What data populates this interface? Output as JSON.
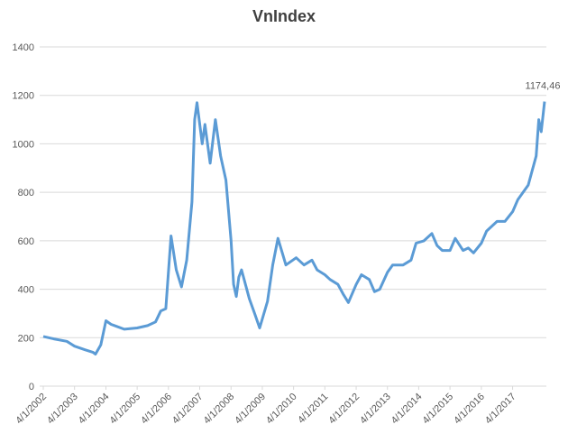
{
  "chart_data": {
    "type": "line",
    "title": "VnIndex",
    "x": [
      "4/1/2002",
      "8/1/2002",
      "1/1/2003",
      "4/1/2003",
      "8/1/2003",
      "11/1/2003",
      "12/1/2003",
      "2/1/2004",
      "4/1/2004",
      "6/1/2004",
      "11/1/2004",
      "4/1/2005",
      "8/1/2005",
      "11/1/2005",
      "1/1/2006",
      "3/1/2006",
      "5/1/2006",
      "7/1/2006",
      "9/1/2006",
      "11/1/2006",
      "1/1/2007",
      "2/1/2007",
      "3/1/2007",
      "5/1/2007",
      "6/1/2007",
      "8/1/2007",
      "10/1/2007",
      "12/1/2007",
      "2/1/2008",
      "4/1/2008",
      "5/1/2008",
      "6/1/2008",
      "7/1/2008",
      "8/1/2008",
      "11/1/2008",
      "1/1/2009",
      "3/1/2009",
      "6/1/2009",
      "8/1/2009",
      "10/1/2009",
      "1/1/2010",
      "5/1/2010",
      "8/1/2010",
      "11/1/2010",
      "1/1/2011",
      "4/1/2011",
      "6/1/2011",
      "9/1/2011",
      "11/1/2011",
      "1/1/2012",
      "4/1/2012",
      "6/1/2012",
      "9/1/2012",
      "11/1/2012",
      "1/1/2013",
      "4/1/2013",
      "6/1/2013",
      "10/1/2013",
      "1/1/2014",
      "3/1/2014",
      "6/1/2014",
      "9/1/2014",
      "11/1/2014",
      "1/1/2015",
      "4/1/2015",
      "6/1/2015",
      "9/1/2015",
      "11/1/2015",
      "1/1/2016",
      "4/1/2016",
      "6/1/2016",
      "10/1/2016",
      "1/1/2017",
      "4/1/2017",
      "6/1/2017",
      "10/1/2017",
      "1/1/2018",
      "2/1/2018",
      "3/1/2018",
      "4/9/2018"
    ],
    "series": [
      {
        "name": "VnIndex",
        "color": "#5b9bd5",
        "values": [
          205,
          195,
          185,
          165,
          150,
          140,
          132,
          170,
          270,
          255,
          235,
          240,
          250,
          265,
          310,
          320,
          620,
          480,
          410,
          520,
          760,
          1100,
          1170,
          1000,
          1080,
          920,
          1100,
          950,
          850,
          600,
          420,
          370,
          450,
          480,
          360,
          300,
          240,
          350,
          500,
          610,
          500,
          530,
          500,
          520,
          480,
          460,
          440,
          420,
          380,
          345,
          420,
          460,
          440,
          390,
          400,
          470,
          500,
          500,
          520,
          590,
          600,
          630,
          580,
          560,
          560,
          610,
          560,
          570,
          550,
          590,
          640,
          680,
          680,
          720,
          770,
          830,
          950,
          1100,
          1050,
          1174.46
        ]
      }
    ],
    "annotation": "1174,46",
    "ylim": [
      0,
      1400
    ],
    "yticks": [
      0,
      200,
      400,
      600,
      800,
      1000,
      1200,
      1400
    ],
    "xticks": [
      "4/1/2002",
      "4/1/2003",
      "4/1/2004",
      "4/1/2005",
      "4/1/2006",
      "4/1/2007",
      "4/1/2008",
      "4/1/2009",
      "4/1/2010",
      "4/1/2011",
      "4/1/2012",
      "4/1/2013",
      "4/1/2014",
      "4/1/2015",
      "4/1/2016",
      "4/1/2017"
    ],
    "grid": true
  }
}
